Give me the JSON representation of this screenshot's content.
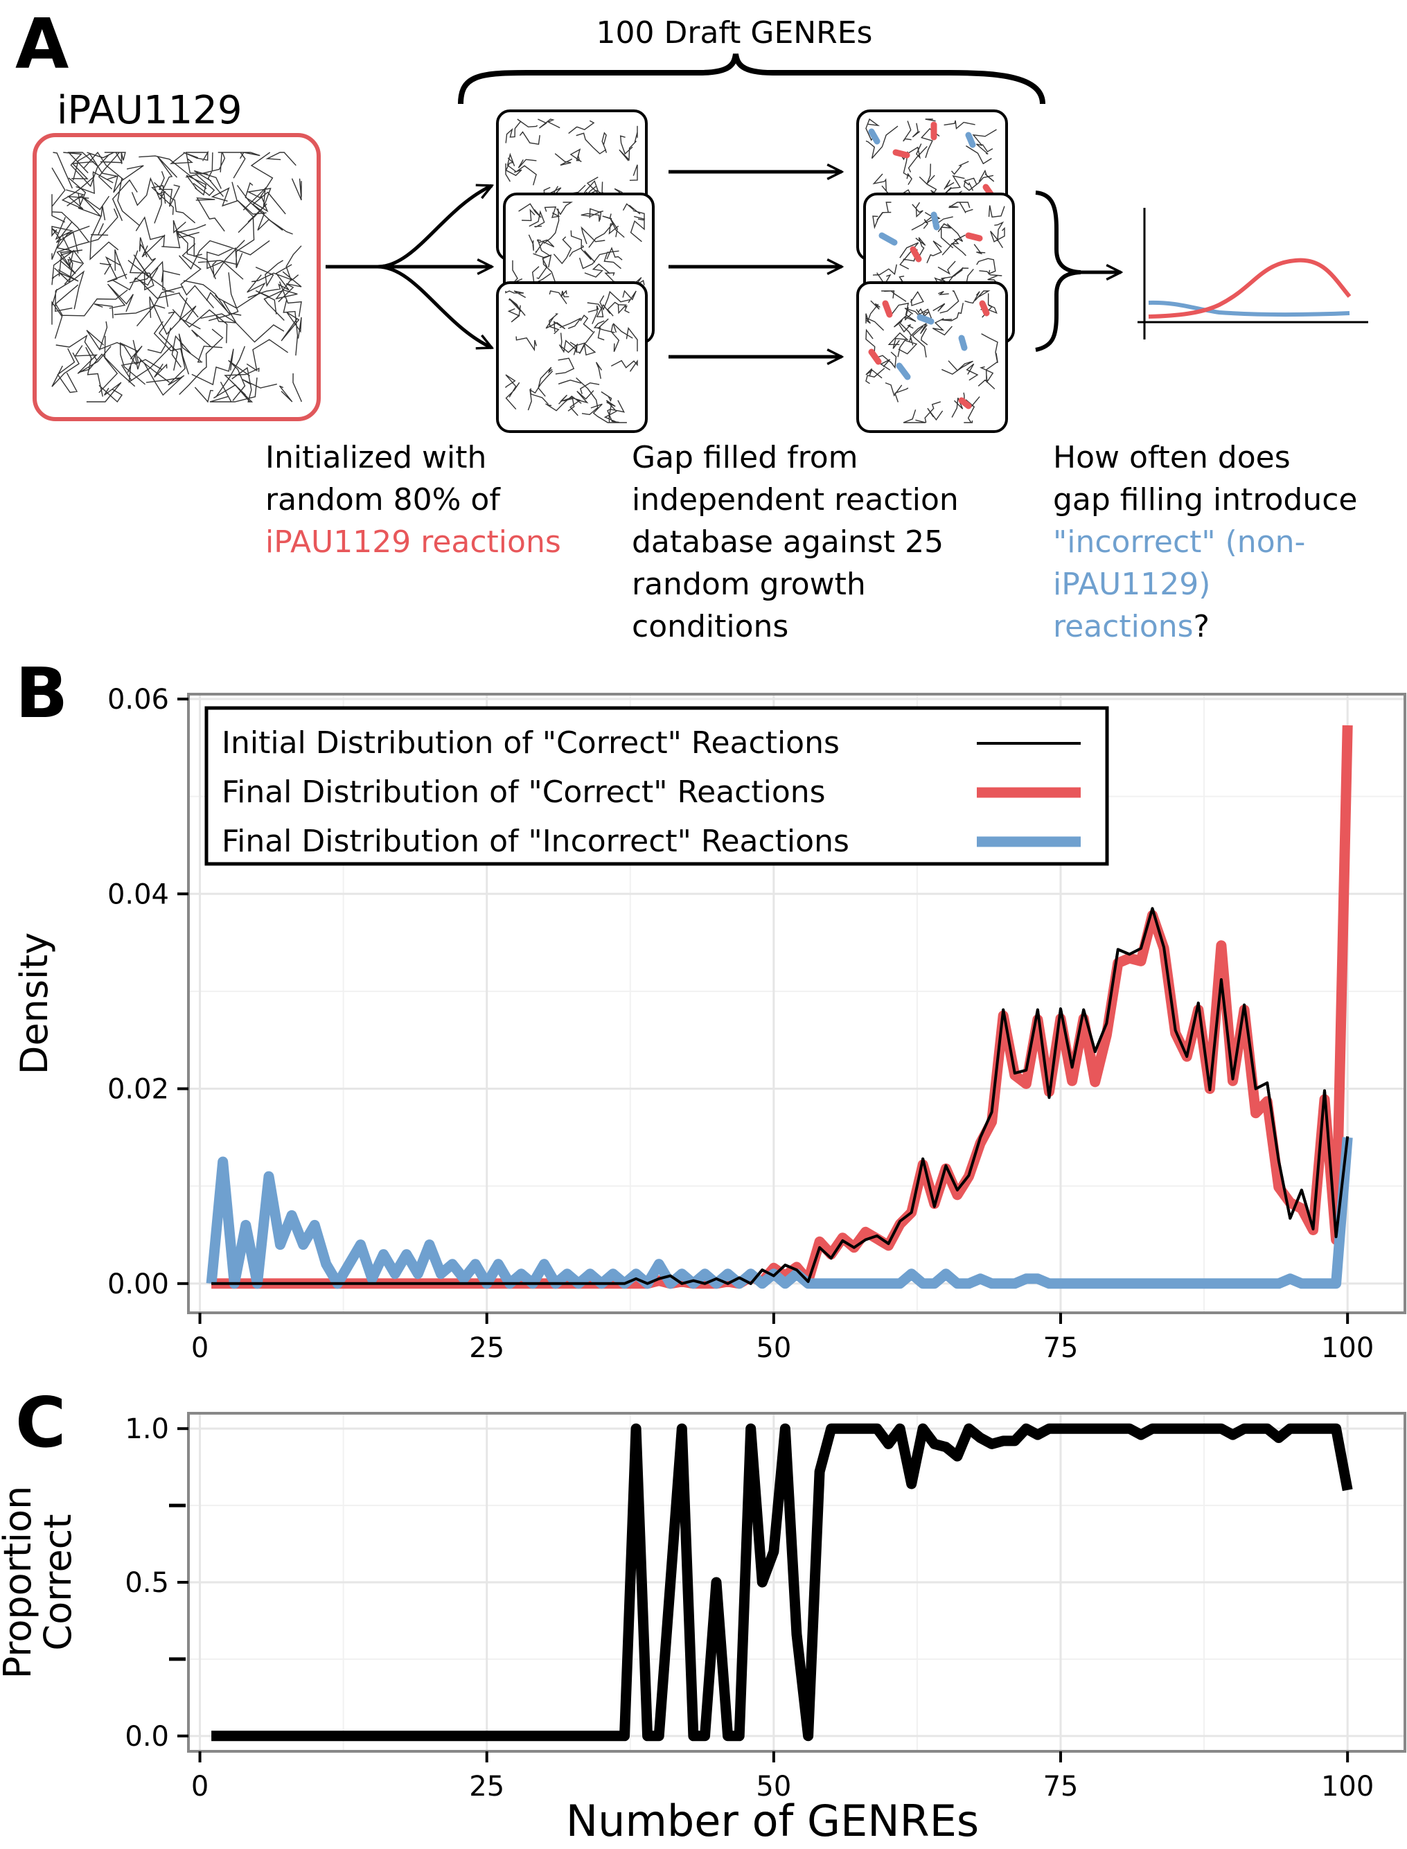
{
  "panel_a": {
    "letter": "A",
    "model_name": "iPAU1129",
    "brace_label": "100 Draft GENREs",
    "caption1": {
      "lines": [
        "Initialized with",
        "random 80% of"
      ],
      "highlight": "iPAU1129 reactions"
    },
    "caption2": {
      "lines": [
        "Gap filled from",
        "independent reaction",
        "database against 25",
        "random growth",
        "conditions"
      ]
    },
    "caption3": {
      "line1": "How often does",
      "line2": "gap filling introduce",
      "line3_blue": "\"incorrect\" (non-",
      "line4_blue": "iPAU1129)",
      "line5_blue": "reactions",
      "line5_end": "?"
    },
    "colors": {
      "correct": "#E8575A",
      "incorrect": "#6FA0CF",
      "frame": "#E0585B"
    }
  },
  "panel_b": {
    "letter": "B"
  },
  "panel_c": {
    "letter": "C"
  },
  "chart_data": [
    {
      "type": "line",
      "panel": "B",
      "ylabel": "Density",
      "xlim": [
        -1,
        105
      ],
      "ylim": [
        -0.003,
        0.0605
      ],
      "xticks": [
        0,
        25,
        50,
        75,
        100
      ],
      "xtick_labels": [
        "0",
        "25",
        "50",
        "75",
        "100"
      ],
      "yticks": [
        0,
        0.02,
        0.04,
        0.06
      ],
      "ytick_labels": [
        "0.00",
        "0.02",
        "0.04",
        "0.06"
      ],
      "grid": true,
      "legend_position": "top-left",
      "series": [
        {
          "name": "Initial Distribution of \"Correct\" Reactions",
          "color": "#000000",
          "x": [
            1,
            37,
            38,
            39,
            40,
            41,
            42,
            43,
            44,
            45,
            46,
            47,
            48,
            49,
            50,
            51,
            52,
            53,
            54,
            55,
            56,
            57,
            58,
            59,
            60,
            61,
            62,
            63,
            64,
            65,
            66,
            67,
            68,
            69,
            70,
            71,
            72,
            73,
            74,
            75,
            76,
            77,
            78,
            79,
            80,
            81,
            82,
            83,
            84,
            85,
            86,
            87,
            88,
            89,
            90,
            91,
            92,
            93,
            94,
            95,
            96,
            97,
            98,
            99,
            100
          ],
          "y": [
            0,
            0,
            0.0005,
            0,
            0.0005,
            0.0008,
            0,
            0.0003,
            0,
            0.0005,
            0,
            0.0006,
            0,
            0.0014,
            0.0008,
            0.0019,
            0.0014,
            0.0002,
            0.0037,
            0.0026,
            0.0044,
            0.0037,
            0.0045,
            0.0049,
            0.0041,
            0.0064,
            0.0073,
            0.0128,
            0.0079,
            0.0121,
            0.0096,
            0.0111,
            0.015,
            0.0176,
            0.0281,
            0.0216,
            0.0219,
            0.0281,
            0.0191,
            0.0282,
            0.0222,
            0.0281,
            0.0238,
            0.0267,
            0.0343,
            0.0338,
            0.0344,
            0.0385,
            0.0345,
            0.026,
            0.0233,
            0.0288,
            0.0199,
            0.0312,
            0.021,
            0.0286,
            0.02,
            0.0206,
            0.0126,
            0.0067,
            0.0096,
            0.0056,
            0.0198,
            0.0048,
            0.0151
          ]
        },
        {
          "name": "Final Distribution of \"Correct\" Reactions",
          "color": "#E8575A",
          "x": [
            1,
            37,
            38,
            39,
            40,
            41,
            42,
            43,
            44,
            45,
            46,
            47,
            48,
            49,
            50,
            51,
            52,
            53,
            54,
            55,
            56,
            57,
            58,
            59,
            60,
            61,
            62,
            63,
            64,
            65,
            66,
            67,
            68,
            69,
            70,
            71,
            72,
            73,
            74,
            75,
            76,
            77,
            78,
            79,
            80,
            81,
            82,
            83,
            84,
            85,
            86,
            87,
            88,
            89,
            90,
            91,
            92,
            93,
            94,
            95,
            96,
            97,
            98,
            99,
            100
          ],
          "y": [
            0,
            0,
            0,
            0,
            0.0003,
            0,
            0.0002,
            0,
            0,
            0,
            0.0002,
            0,
            0.0007,
            0.0002,
            0.0016,
            0.0008,
            0.0017,
            0.0003,
            0.0043,
            0.003,
            0.0047,
            0.0037,
            0.0053,
            0.0046,
            0.0039,
            0.0061,
            0.0073,
            0.0122,
            0.0082,
            0.0118,
            0.0091,
            0.011,
            0.0144,
            0.0166,
            0.0275,
            0.0214,
            0.0205,
            0.0271,
            0.0197,
            0.0272,
            0.0208,
            0.0272,
            0.0207,
            0.0255,
            0.0329,
            0.0334,
            0.0331,
            0.0378,
            0.0344,
            0.0257,
            0.0233,
            0.0281,
            0.02,
            0.0347,
            0.0208,
            0.0281,
            0.0175,
            0.0187,
            0.0099,
            0.0083,
            0.0077,
            0.0055,
            0.0189,
            0.0045,
            0.0573
          ]
        },
        {
          "name": "Final Distribution of \"Incorrect\" Reactions",
          "color": "#6FA0CF",
          "x": [
            1,
            2,
            3,
            4,
            5,
            6,
            7,
            8,
            9,
            10,
            11,
            12,
            13,
            14,
            15,
            16,
            17,
            18,
            19,
            20,
            21,
            22,
            23,
            24,
            25,
            26,
            27,
            28,
            29,
            30,
            31,
            32,
            33,
            34,
            35,
            36,
            37,
            38,
            39,
            40,
            41,
            42,
            43,
            44,
            45,
            46,
            47,
            48,
            49,
            50,
            51,
            52,
            53,
            54,
            55,
            56,
            57,
            58,
            59,
            60,
            61,
            62,
            63,
            64,
            65,
            66,
            67,
            68,
            69,
            70,
            71,
            72,
            73,
            74,
            75,
            76,
            77,
            78,
            79,
            80,
            81,
            82,
            83,
            84,
            85,
            86,
            87,
            88,
            89,
            90,
            91,
            92,
            93,
            94,
            95,
            96,
            97,
            98,
            99,
            100
          ],
          "y": [
            0,
            0.0125,
            0,
            0.006,
            0,
            0.011,
            0.004,
            0.007,
            0.004,
            0.006,
            0.002,
            0,
            0.002,
            0.004,
            0.0005,
            0.003,
            0.001,
            0.003,
            0.001,
            0.004,
            0.001,
            0.002,
            0.0005,
            0.002,
            0,
            0.002,
            0,
            0.001,
            0,
            0.002,
            0,
            0.001,
            0,
            0.001,
            0,
            0.001,
            0,
            0.001,
            0,
            0.002,
            0,
            0.001,
            0,
            0.001,
            0,
            0.001,
            0,
            0.001,
            0,
            0.001,
            0,
            0.001,
            0,
            0,
            0,
            0,
            0,
            0,
            0,
            0,
            0,
            0.001,
            0,
            0,
            0.001,
            0,
            0,
            0.0005,
            0,
            0,
            0,
            0.0005,
            0.0005,
            0,
            0,
            0,
            0,
            0,
            0,
            0,
            0,
            0,
            0,
            0,
            0,
            0,
            0,
            0,
            0,
            0,
            0,
            0,
            0,
            0,
            0.0005,
            0,
            0,
            0,
            0,
            0.015
          ]
        }
      ],
      "legend_x": 0.82
    },
    {
      "type": "line",
      "panel": "C",
      "xlabel": "Number of GENREs",
      "ylabel": "Proportion Correct",
      "xlim": [
        -1,
        105
      ],
      "ylim": [
        -0.05,
        1.05
      ],
      "xticks": [
        0,
        25,
        50,
        75,
        100
      ],
      "xtick_labels": [
        "0",
        "25",
        "50",
        "75",
        "100"
      ],
      "yticks": [
        0,
        0.5,
        1.0
      ],
      "ytick_labels": [
        "0.0",
        "0.5",
        "1.0"
      ],
      "yminor_ticks": [
        0.25,
        0.75
      ],
      "grid": true,
      "series": [
        {
          "name": "",
          "color": "#000000",
          "x": [
            1,
            37,
            38,
            39,
            40,
            41,
            42,
            43,
            44,
            45,
            46,
            47,
            48,
            49,
            50,
            51,
            52,
            53,
            54,
            55,
            56,
            57,
            58,
            59,
            60,
            61,
            62,
            63,
            64,
            65,
            66,
            67,
            68,
            69,
            70,
            71,
            72,
            73,
            74,
            75,
            76,
            77,
            78,
            79,
            80,
            81,
            82,
            83,
            84,
            85,
            86,
            87,
            88,
            89,
            90,
            91,
            92,
            93,
            94,
            95,
            96,
            97,
            98,
            99,
            100
          ],
          "y": [
            0,
            0,
            1,
            0,
            0,
            0.5,
            1,
            0,
            0,
            0.5,
            0,
            0,
            1,
            0.5,
            0.6,
            1,
            0.33,
            0,
            0.86,
            1,
            1,
            1,
            1,
            1,
            0.95,
            1,
            0.82,
            1,
            0.95,
            0.94,
            0.91,
            1,
            0.97,
            0.95,
            0.96,
            0.96,
            1,
            0.98,
            1,
            1,
            1,
            1,
            1,
            1,
            1,
            1,
            0.98,
            1,
            1,
            1,
            1,
            1,
            1,
            1,
            0.98,
            1,
            1,
            1,
            0.97,
            1,
            1,
            1,
            1,
            1,
            0.8
          ]
        }
      ]
    }
  ]
}
